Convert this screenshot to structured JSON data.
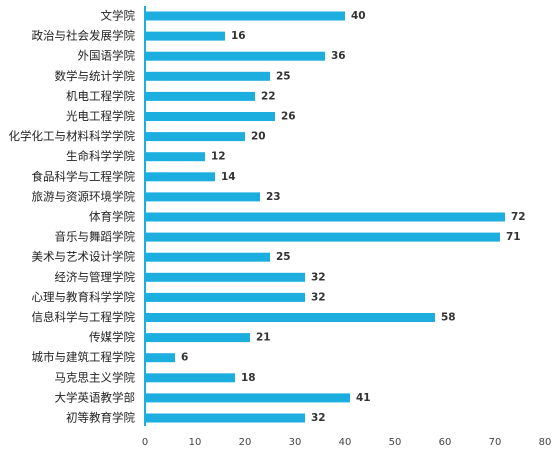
{
  "chart_data": {
    "type": "bar",
    "orientation": "horizontal",
    "title": "",
    "xlabel": "",
    "ylabel": "",
    "categories": [
      "文学院",
      "政治与社会发展学院",
      "外国语学院",
      "数学与统计学院",
      "机电工程学院",
      "光电工程学院",
      "化学化工与材料科学学院",
      "生命科学学院",
      "食品科学与工程学院",
      "旅游与资源环境学院",
      "体育学院",
      "音乐与舞蹈学院",
      "美术与艺术设计学院",
      "经济与管理学院",
      "心理与教育科学学院",
      "信息科学与工程学院",
      "传媒学院",
      "城市与建筑工程学院",
      "马克思主义学院",
      "大学英语教学部",
      "初等教育学院"
    ],
    "values": [
      40,
      16,
      36,
      25,
      22,
      26,
      20,
      12,
      14,
      23,
      72,
      71,
      25,
      32,
      32,
      58,
      21,
      6,
      18,
      41,
      32
    ],
    "xlim": [
      0,
      80
    ],
    "xticks": [
      0,
      10,
      20,
      30,
      40,
      50,
      60,
      70,
      80
    ],
    "bar_color": "#1DAEE0",
    "axis_color": "#1DAEE0",
    "grid": false,
    "data_labels": true,
    "legend": "none"
  }
}
